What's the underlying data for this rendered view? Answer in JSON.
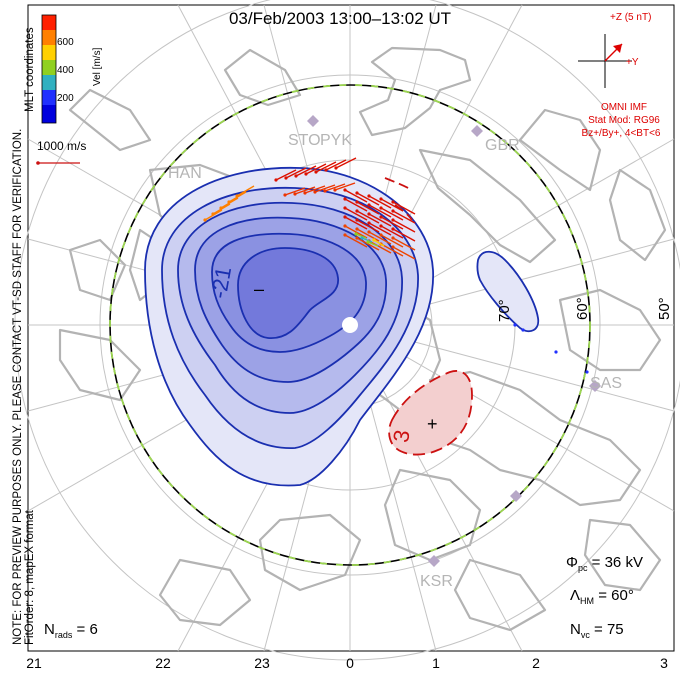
{
  "title": "03/Feb/2003 13:00–13:02 UT",
  "colorbar": {
    "axis_label": "Vel [m/s]",
    "ticks": [
      "600",
      "400",
      "200"
    ],
    "colors": [
      "#ff2000",
      "#ff8000",
      "#ffd000",
      "#90d020",
      "#30b0c0",
      "#2030ff",
      "#0000dd"
    ]
  },
  "coordinate_label": "MLT coordinates",
  "velocity_scale": "1000 m/s",
  "note": {
    "line1": "NOTE: FOR PREVIEW PURPOSES ONLY. PLEASE CONTACT VT-SD STAFF FOR VERIFICATION.",
    "line2": "FitOrder: 8, mapEX format"
  },
  "imf": {
    "z_label": "+Z (5 nT)",
    "y_label": "+Y",
    "lines": [
      "OMNI IMF",
      "Stat Mod: RG96",
      "Bz+/By+, 4<BT<6"
    ]
  },
  "stations": [
    "HAN",
    "STO",
    "PYK",
    "GBR",
    "SAS",
    "KSR"
  ],
  "latitude_labels": [
    "70°",
    "60°",
    "50°"
  ],
  "contour_labels": [
    "-21",
    "3"
  ],
  "extrema_markers": [
    "–",
    "+"
  ],
  "stats": {
    "phi_pc": "36 kV",
    "lambda_hm": "60°",
    "n_vc": "75",
    "n_rads": "6"
  },
  "mlt_ticks": [
    "21",
    "22",
    "23",
    "0",
    "1",
    "2",
    "3"
  ],
  "colors": {
    "negative_fill": "#7f86e6",
    "positive_fill": "#f3c9c9",
    "negative_contour": "#1a2fb0",
    "positive_contour": "#cc1111",
    "grid": "#bdbdbd",
    "coastline": "#b5b5b5",
    "hmb": "#9cd650"
  }
}
